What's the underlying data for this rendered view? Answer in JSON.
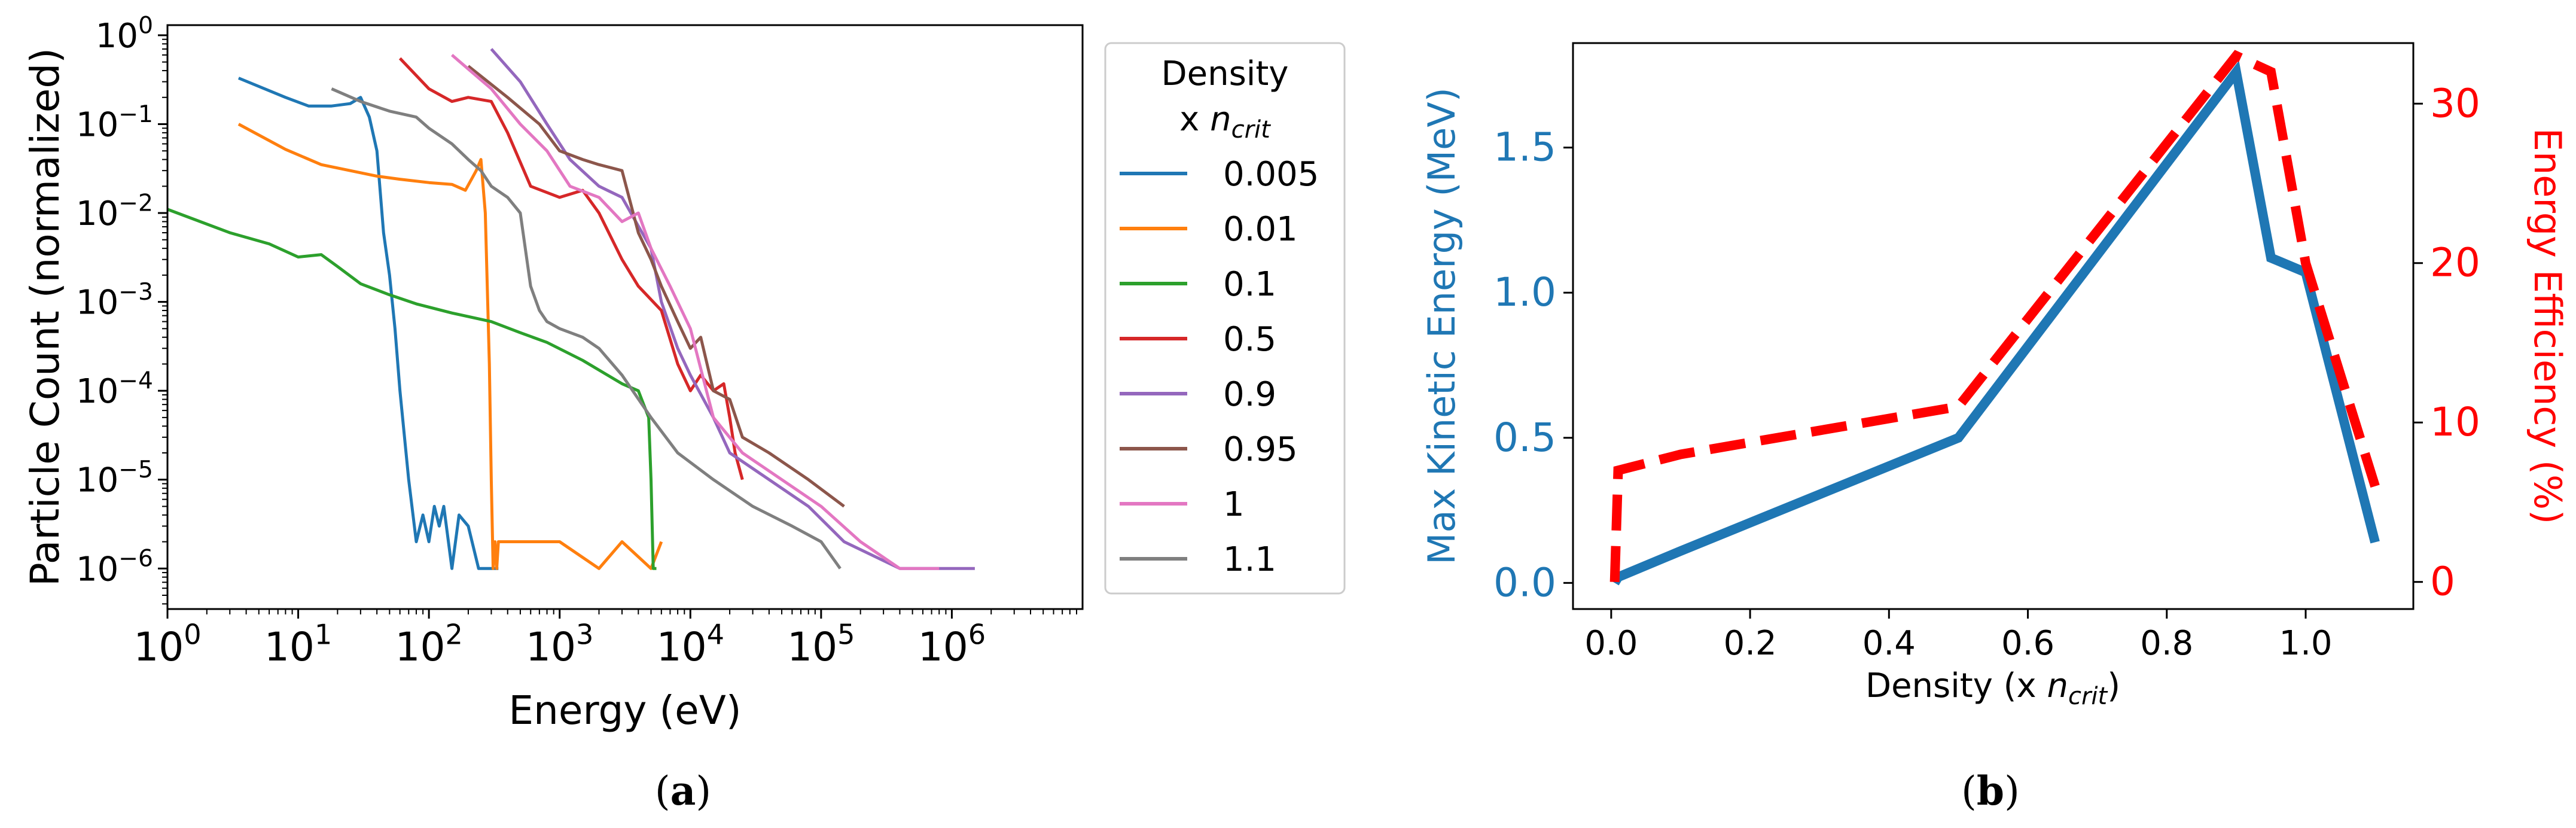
{
  "chart_data": [
    {
      "panel": "a",
      "type": "line",
      "panel_label": {
        "open": "(",
        "letter": "a",
        "close": ")"
      },
      "xlabel": "Energy (eV)",
      "ylabel": "Particle Count (normalized)",
      "xscale": "log",
      "yscale": "log",
      "xlim": [
        1,
        10000000
      ],
      "ylim": [
        3.5e-07,
        1.3
      ],
      "x_ticks": [
        {
          "value": 1,
          "base": "10",
          "exp": "0"
        },
        {
          "value": 10,
          "base": "10",
          "exp": "1"
        },
        {
          "value": 100,
          "base": "10",
          "exp": "2"
        },
        {
          "value": 1000,
          "base": "10",
          "exp": "3"
        },
        {
          "value": 10000,
          "base": "10",
          "exp": "4"
        },
        {
          "value": 100000,
          "base": "10",
          "exp": "5"
        },
        {
          "value": 1000000,
          "base": "10",
          "exp": "6"
        }
      ],
      "y_ticks": [
        {
          "value": 1e-06,
          "base": "10",
          "exp": "−6"
        },
        {
          "value": 1e-05,
          "base": "10",
          "exp": "−5"
        },
        {
          "value": 0.0001,
          "base": "10",
          "exp": "−4"
        },
        {
          "value": 0.001,
          "base": "10",
          "exp": "−3"
        },
        {
          "value": 0.01,
          "base": "10",
          "exp": "−2"
        },
        {
          "value": 0.1,
          "base": "10",
          "exp": "−1"
        },
        {
          "value": 1,
          "base": "10",
          "exp": "0"
        }
      ],
      "legend": {
        "title_line1": "Density",
        "title_line2_prefix": "x ",
        "title_line2_var": "n",
        "title_line2_sub": "crit",
        "placement": "outside-right"
      },
      "series": [
        {
          "name": "0.005",
          "color": "#1f77b4",
          "x": [
            3.5,
            8,
            12,
            18,
            25,
            30,
            35,
            40,
            45,
            50,
            55,
            60,
            70,
            80,
            90,
            100,
            110,
            120,
            130,
            150,
            170,
            200,
            240,
            300,
            340
          ],
          "y": [
            0.33,
            0.2,
            0.16,
            0.16,
            0.17,
            0.2,
            0.12,
            0.05,
            0.006,
            0.002,
            0.0005,
            0.0001,
            1e-05,
            2e-06,
            4e-06,
            2e-06,
            5e-06,
            3e-06,
            5e-06,
            1e-06,
            4e-06,
            3e-06,
            1e-06,
            1e-06,
            1e-06
          ]
        },
        {
          "name": "0.01",
          "color": "#ff7f0e",
          "x": [
            3.5,
            8,
            15,
            25,
            40,
            60,
            100,
            150,
            190,
            215,
            230,
            250,
            270,
            290,
            300,
            310,
            320,
            330,
            340,
            1000,
            2000,
            3000,
            5000,
            6000
          ],
          "y": [
            0.1,
            0.052,
            0.035,
            0.03,
            0.026,
            0.024,
            0.022,
            0.021,
            0.018,
            0.025,
            0.03,
            0.04,
            0.01,
            0.0002,
            1e-05,
            1e-06,
            2e-06,
            1e-06,
            2e-06,
            2e-06,
            1e-06,
            2e-06,
            1e-06,
            2e-06
          ]
        },
        {
          "name": "0.1",
          "color": "#2ca02c",
          "x": [
            1,
            3,
            6,
            10,
            15,
            20,
            30,
            50,
            80,
            150,
            300,
            500,
            800,
            1500,
            3000,
            4000,
            4800,
            5000,
            5200,
            5500
          ],
          "y": [
            0.011,
            0.006,
            0.0045,
            0.0032,
            0.0034,
            0.0025,
            0.0016,
            0.0012,
            0.00095,
            0.00075,
            0.0006,
            0.00045,
            0.00035,
            0.00022,
            0.00012,
            0.0001,
            5e-05,
            1e-05,
            1e-06,
            1e-06
          ]
        },
        {
          "name": "0.5",
          "color": "#d62728",
          "x": [
            60,
            100,
            150,
            200,
            300,
            400,
            600,
            1000,
            1500,
            2000,
            3000,
            4000,
            6000,
            8000,
            10000,
            12000,
            15000,
            18000,
            20000,
            22000,
            25000
          ],
          "y": [
            0.55,
            0.25,
            0.18,
            0.2,
            0.18,
            0.08,
            0.02,
            0.015,
            0.018,
            0.01,
            0.003,
            0.0015,
            0.0008,
            0.0002,
            0.0001,
            0.00015,
            0.0001,
            0.00012,
            5e-05,
            2e-05,
            1e-05
          ]
        },
        {
          "name": "0.9",
          "color": "#9467bd",
          "x": [
            300,
            500,
            800,
            1200,
            2000,
            3000,
            5000,
            6000,
            8000,
            10000,
            15000,
            20000,
            40000,
            80000,
            150000,
            400000,
            800000,
            1500000
          ],
          "y": [
            0.7,
            0.3,
            0.1,
            0.04,
            0.02,
            0.015,
            0.004,
            0.001,
            0.0003,
            0.00015,
            5e-05,
            2e-05,
            1e-05,
            5e-06,
            2e-06,
            1e-06,
            1e-06,
            1e-06
          ]
        },
        {
          "name": "0.95",
          "color": "#8c564b",
          "x": [
            200,
            400,
            700,
            1000,
            1500,
            2000,
            3000,
            4000,
            5000,
            6000,
            8000,
            10000,
            12000,
            15000,
            20000,
            25000,
            40000,
            80000,
            150000
          ],
          "y": [
            0.45,
            0.2,
            0.1,
            0.05,
            0.04,
            0.035,
            0.03,
            0.006,
            0.003,
            0.0015,
            0.0006,
            0.0003,
            0.0004,
            0.0001,
            8e-05,
            3e-05,
            2e-05,
            1e-05,
            5e-06
          ]
        },
        {
          "name": "1",
          "color": "#e377c2",
          "x": [
            150,
            300,
            500,
            800,
            1200,
            2000,
            3000,
            4000,
            5000,
            7000,
            10000,
            15000,
            25000,
            50000,
            100000,
            200000,
            400000,
            800000
          ],
          "y": [
            0.6,
            0.25,
            0.1,
            0.05,
            0.02,
            0.015,
            0.008,
            0.01,
            0.004,
            0.0015,
            0.0005,
            5e-05,
            2e-05,
            1e-05,
            5e-06,
            2e-06,
            1e-06,
            1e-06
          ]
        },
        {
          "name": "1.1",
          "color": "#7f7f7f",
          "x": [
            18,
            30,
            50,
            80,
            100,
            150,
            200,
            250,
            300,
            400,
            500,
            600,
            700,
            800,
            1000,
            1500,
            2000,
            3000,
            5000,
            8000,
            15000,
            30000,
            60000,
            100000,
            140000
          ],
          "y": [
            0.25,
            0.18,
            0.14,
            0.12,
            0.09,
            0.06,
            0.04,
            0.03,
            0.02,
            0.015,
            0.01,
            0.0015,
            0.0008,
            0.0006,
            0.0005,
            0.0004,
            0.0003,
            0.00015,
            5e-05,
            2e-05,
            1e-05,
            5e-06,
            3e-06,
            2e-06,
            1e-06
          ]
        }
      ]
    },
    {
      "panel": "b",
      "type": "line",
      "panel_label": {
        "open": "(",
        "letter": "b",
        "close": ")"
      },
      "xlabel_prefix": "Density (x ",
      "xlabel_var": "n",
      "xlabel_sub": "crit",
      "xlabel_suffix": ")",
      "ylabel_left": "Max Kinetic Energy (MeV)",
      "ylabel_right": "Energy Efficiency (%)",
      "xlim": [
        -0.055,
        1.155
      ],
      "ylim_left": [
        -0.09,
        1.86
      ],
      "ylim_right": [
        -1.7,
        33.8
      ],
      "x_ticks": [
        "0.0",
        "0.2",
        "0.4",
        "0.6",
        "0.8",
        "1.0"
      ],
      "y_left_ticks": [
        "0.0",
        "0.5",
        "1.0",
        "1.5"
      ],
      "y_right_ticks": [
        "0",
        "10",
        "20",
        "30"
      ],
      "colors": {
        "left": "#1f77b4",
        "right": "#ff0000"
      },
      "series": [
        {
          "name": "Max Kinetic Energy",
          "axis": "left",
          "style": "solid",
          "color": "#1f77b4",
          "x": [
            0.005,
            0.01,
            0.1,
            0.5,
            0.9,
            0.95,
            1.0,
            1.1
          ],
          "y": [
            0.0,
            0.02,
            0.11,
            0.5,
            1.76,
            1.12,
            1.07,
            0.14
          ]
        },
        {
          "name": "Energy Efficiency",
          "axis": "right",
          "style": "dashed",
          "color": "#ff0000",
          "x": [
            0.005,
            0.01,
            0.1,
            0.5,
            0.9,
            0.95,
            1.0,
            1.1
          ],
          "y": [
            0.0,
            7.0,
            8.0,
            11.0,
            33.0,
            32.0,
            20.0,
            6.0
          ]
        }
      ]
    }
  ]
}
